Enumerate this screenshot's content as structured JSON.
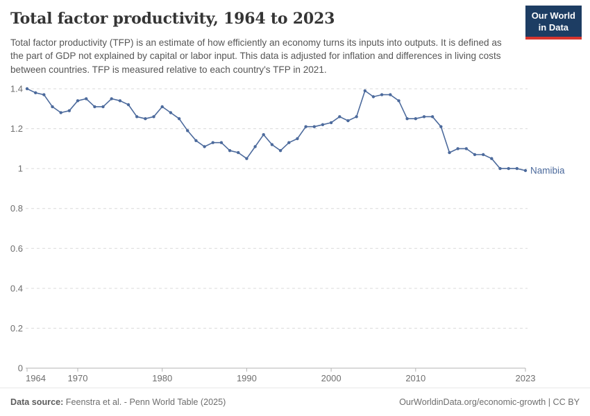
{
  "header": {
    "title": "Total factor productivity, 1964 to 2023",
    "subtitle": "Total factor productivity (TFP) is an estimate of how efficiently an economy turns its inputs into outputs. It is defined as the part of GDP not explained by capital or labor input. This data is adjusted for inflation and differences in living costs between countries. TFP is measured relative to each country's TFP in 2021.",
    "logo": {
      "line1": "Our World",
      "line2": "in Data",
      "bg_color": "#1d3d63",
      "accent_color": "#d8352e"
    }
  },
  "chart_data": {
    "type": "line",
    "title": "Total factor productivity, 1964 to 2023",
    "x": [
      1964,
      1965,
      1966,
      1967,
      1968,
      1969,
      1970,
      1971,
      1972,
      1973,
      1974,
      1975,
      1976,
      1977,
      1978,
      1979,
      1980,
      1981,
      1982,
      1983,
      1984,
      1985,
      1986,
      1987,
      1988,
      1989,
      1990,
      1991,
      1992,
      1993,
      1994,
      1995,
      1996,
      1997,
      1998,
      1999,
      2000,
      2001,
      2002,
      2003,
      2004,
      2005,
      2006,
      2007,
      2008,
      2009,
      2010,
      2011,
      2012,
      2013,
      2014,
      2015,
      2016,
      2017,
      2018,
      2019,
      2020,
      2021,
      2022,
      2023
    ],
    "series": [
      {
        "name": "Namibia",
        "color": "#4c6a9c",
        "values": [
          1.4,
          1.38,
          1.37,
          1.31,
          1.28,
          1.29,
          1.34,
          1.35,
          1.31,
          1.31,
          1.35,
          1.34,
          1.32,
          1.26,
          1.25,
          1.26,
          1.31,
          1.28,
          1.25,
          1.19,
          1.14,
          1.11,
          1.13,
          1.13,
          1.09,
          1.08,
          1.05,
          1.11,
          1.17,
          1.12,
          1.09,
          1.13,
          1.15,
          1.21,
          1.21,
          1.22,
          1.23,
          1.26,
          1.24,
          1.26,
          1.39,
          1.36,
          1.37,
          1.37,
          1.34,
          1.25,
          1.25,
          1.26,
          1.26,
          1.21,
          1.08,
          1.1,
          1.1,
          1.07,
          1.07,
          1.05,
          1.0,
          1.0,
          1.0,
          0.99
        ]
      }
    ],
    "xlabel": "",
    "ylabel": "",
    "xlim": [
      1964,
      2023
    ],
    "ylim": [
      0,
      1.4
    ],
    "yticks": [
      0,
      0.2,
      0.4,
      0.6,
      0.8,
      1,
      1.2,
      1.4
    ],
    "ytick_labels": [
      "0",
      "0.2",
      "0.4",
      "0.6",
      "0.8",
      "1",
      "1.2",
      "1.4"
    ],
    "xticks": [
      1964,
      1970,
      1980,
      1990,
      2000,
      2010,
      2023
    ],
    "xtick_labels": [
      "1964",
      "1970",
      "1980",
      "1990",
      "2000",
      "2010",
      "2023"
    ],
    "grid": "horizontal-dashed",
    "legend_position": "line-end-label",
    "colors": {
      "gridline": "#dadada",
      "axis_line": "#b3b3b3",
      "tick_label": "#6e6e6e"
    }
  },
  "footer": {
    "datasource_label": "Data source:",
    "datasource_value": "Feenstra et al. - Penn World Table (2025)",
    "link": "OurWorldinData.org/economic-growth",
    "separator": "|",
    "license": "CC BY"
  }
}
